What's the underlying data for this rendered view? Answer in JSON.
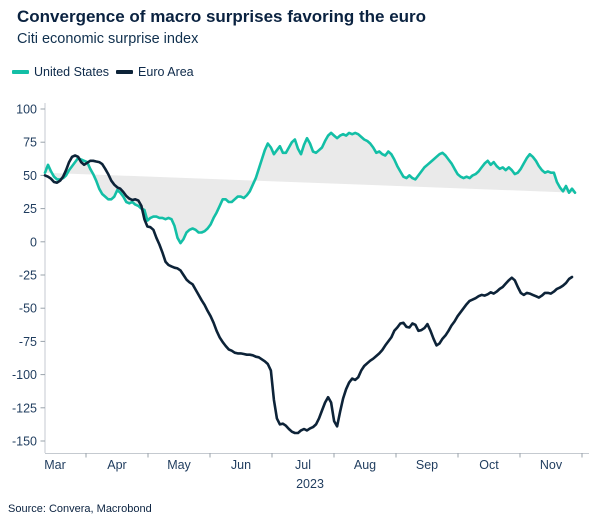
{
  "source": {
    "text": "Source: Convera, Macrobond"
  },
  "colors": {
    "title_text": "#0a2240",
    "tick_label": "#1f3c5e",
    "axis_line": "#c5cad0",
    "tick_mark": "#9aa3ab",
    "band_fill": "#eaeaea",
    "us_line": "#13bfa6",
    "ea_line": "#0d2338"
  },
  "chart_data": {
    "type": "line",
    "title": "Convergence of macro surprises favoring the euro",
    "subtitle": "Citi economic surprise index",
    "xlabel": "2023",
    "ylabel": "",
    "ylim": [
      -150,
      100
    ],
    "grid": false,
    "legend_position": "top-left",
    "band_fill_between_series": true,
    "x_axis": {
      "tick_labels": [
        "Mar",
        "Apr",
        "May",
        "Jun",
        "Jul",
        "Aug",
        "Sep",
        "Oct",
        "Nov"
      ],
      "year_label": "2023"
    },
    "y_axis": {
      "min": -150,
      "max": 100,
      "step": 25
    },
    "series": [
      {
        "name": "United States",
        "color": "#13bfa6",
        "values": [
          52,
          58,
          53,
          49,
          47,
          47,
          48,
          50,
          54,
          57,
          60,
          63,
          62,
          61,
          60,
          55,
          51,
          46,
          40,
          36,
          34,
          32,
          32,
          34,
          39,
          37,
          34,
          30,
          29,
          30,
          28,
          27,
          25,
          24,
          16,
          18,
          19,
          19,
          18,
          18,
          17,
          18,
          17,
          12,
          3,
          -1,
          2,
          7,
          9,
          10,
          9,
          7,
          7,
          8,
          10,
          13,
          18,
          22,
          27,
          32,
          32,
          30,
          30,
          32,
          34,
          34,
          33,
          35,
          38,
          43,
          48,
          55,
          62,
          69,
          74,
          71,
          66,
          69,
          72,
          67,
          67,
          71,
          75,
          77,
          70,
          66,
          73,
          78,
          74,
          68,
          67,
          69,
          71,
          76,
          80,
          82,
          80,
          78,
          80,
          81,
          80,
          82,
          81,
          82,
          81,
          79,
          77,
          76,
          74,
          71,
          67,
          68,
          66,
          65,
          68,
          66,
          62,
          57,
          53,
          49,
          48,
          50,
          48,
          47,
          50,
          53,
          56,
          58,
          60,
          62,
          64,
          66,
          67,
          65,
          62,
          59,
          55,
          51,
          49,
          48,
          49,
          48,
          50,
          51,
          53,
          56,
          59,
          61,
          58,
          60,
          57,
          55,
          56,
          54,
          56,
          54,
          51,
          52,
          55,
          59,
          63,
          66,
          64,
          61,
          57,
          54,
          52,
          53,
          52,
          52,
          45,
          41,
          38,
          42,
          37,
          40,
          37
        ]
      },
      {
        "name": "Euro Area",
        "color": "#0d2338",
        "values": [
          50,
          49,
          47.5,
          45,
          44.5,
          46,
          49,
          54,
          60,
          64,
          65,
          64,
          60,
          58,
          59.5,
          61,
          61,
          60.5,
          60,
          58.5,
          55,
          51,
          46,
          43,
          41,
          40,
          37.5,
          34.5,
          32.5,
          31.5,
          32,
          31,
          27,
          17,
          11.5,
          11,
          9,
          3,
          -2,
          -8,
          -15,
          -17.5,
          -18.5,
          -19.5,
          -20,
          -21.5,
          -25,
          -28.5,
          -30.5,
          -32,
          -36,
          -40,
          -44,
          -47.5,
          -52,
          -56,
          -61,
          -67,
          -72,
          -75.5,
          -78.5,
          -81,
          -82,
          -83.5,
          -84,
          -84,
          -84.5,
          -85,
          -85,
          -85.5,
          -86.5,
          -87,
          -88.5,
          -90,
          -92,
          -97,
          -119,
          -133,
          -137.5,
          -137,
          -138.5,
          -141,
          -143,
          -144,
          -144,
          -142,
          -141,
          -142,
          -140.5,
          -139.5,
          -137.5,
          -133,
          -127,
          -121,
          -117,
          -121,
          -135,
          -139,
          -128,
          -118,
          -111,
          -106,
          -103,
          -104,
          -102,
          -97,
          -93.5,
          -91.5,
          -89.5,
          -88,
          -86,
          -84,
          -81.5,
          -78,
          -75,
          -72,
          -67,
          -64.5,
          -61.5,
          -61,
          -64,
          -64.5,
          -61.5,
          -62.5,
          -67,
          -66.5,
          -65,
          -62,
          -67,
          -73,
          -78,
          -76.5,
          -73,
          -70.5,
          -67,
          -63,
          -60,
          -56,
          -53,
          -50,
          -47,
          -44.5,
          -43.5,
          -42.5,
          -41,
          -40,
          -40.5,
          -39.5,
          -38,
          -39,
          -37.5,
          -35.5,
          -34,
          -31.5,
          -29,
          -27,
          -29,
          -34,
          -38.5,
          -40,
          -38.5,
          -39,
          -40,
          -41,
          -42,
          -40.5,
          -38.5,
          -38.5,
          -39,
          -37.5,
          -35.5,
          -34.5,
          -33,
          -31,
          -28,
          -26.5
        ]
      }
    ]
  }
}
